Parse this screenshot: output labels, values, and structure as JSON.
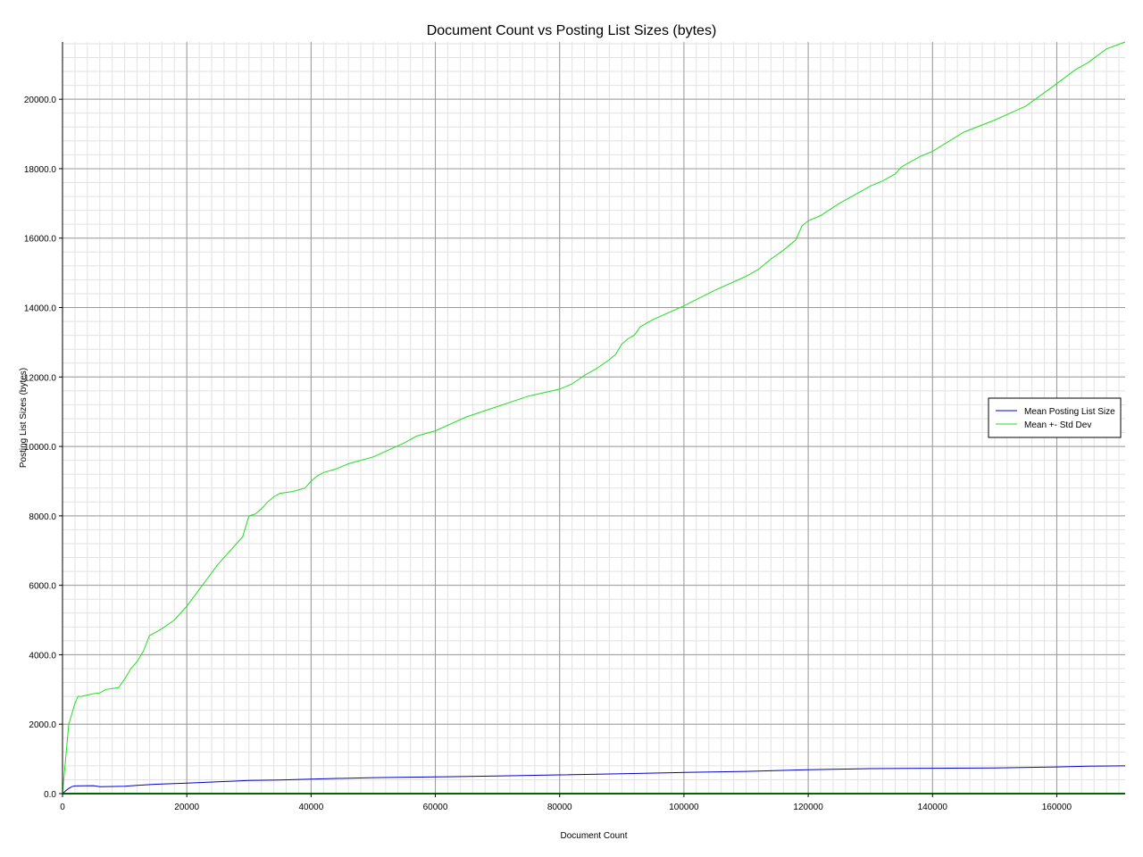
{
  "chart_data": {
    "type": "line",
    "title": "Document Count vs Posting List Sizes (bytes)",
    "xlabel": "Document Count",
    "ylabel": "Posting List Sizes (bytes)",
    "xlim": [
      0,
      171000
    ],
    "ylim": [
      0,
      21650
    ],
    "x_ticks": [
      0,
      20000,
      40000,
      60000,
      80000,
      100000,
      120000,
      140000,
      160000
    ],
    "x_tick_labels": [
      "0",
      "20000",
      "40000",
      "60000",
      "80000",
      "100000",
      "120000",
      "140000",
      "160000"
    ],
    "y_ticks": [
      0,
      2000,
      4000,
      6000,
      8000,
      10000,
      12000,
      14000,
      16000,
      18000,
      20000
    ],
    "y_tick_labels": [
      "0.0",
      "2000.0",
      "4000.0",
      "6000.0",
      "8000.0",
      "10000.0",
      "12000.0",
      "14000.0",
      "16000.0",
      "18000.0",
      "20000.0"
    ],
    "grid": true,
    "legend_position": "right",
    "series": [
      {
        "name": "Mean Posting List Size",
        "color": "#0000cc",
        "x": [
          0,
          500,
          1000,
          1500,
          2000,
          5000,
          6000,
          10000,
          12000,
          15000,
          20000,
          25000,
          30000,
          35000,
          40000,
          50000,
          60000,
          70000,
          80000,
          90000,
          100000,
          110000,
          120000,
          130000,
          140000,
          150000,
          160000,
          165000,
          171000
        ],
        "y": [
          0,
          80,
          150,
          200,
          220,
          230,
          200,
          210,
          240,
          270,
          300,
          340,
          380,
          390,
          420,
          460,
          480,
          510,
          540,
          570,
          610,
          640,
          690,
          720,
          730,
          740,
          770,
          790,
          800
        ]
      },
      {
        "name": "Mean +- Std Dev",
        "color": "#22dd22",
        "x": [
          0,
          500,
          1000,
          2000,
          2500,
          3000,
          5000,
          6000,
          7000,
          9000,
          10000,
          11000,
          12000,
          13000,
          14000,
          15000,
          16000,
          18000,
          20000,
          25000,
          29000,
          30000,
          31000,
          32000,
          33000,
          34000,
          35000,
          37000,
          39000,
          40000,
          41000,
          42000,
          44000,
          46000,
          50000,
          55000,
          57000,
          60000,
          65000,
          70000,
          75000,
          80000,
          82000,
          84000,
          86000,
          88000,
          89000,
          90000,
          91000,
          92000,
          93000,
          95000,
          100000,
          105000,
          110000,
          112000,
          114000,
          116000,
          118000,
          119000,
          120000,
          122000,
          125000,
          130000,
          132000,
          134000,
          135000,
          136000,
          138000,
          140000,
          145000,
          150000,
          155000,
          160000,
          163000,
          165000,
          168000,
          171000
        ],
        "y": [
          0,
          1000,
          2000,
          2600,
          2800,
          2800,
          2880,
          2900,
          3000,
          3050,
          3300,
          3600,
          3800,
          4100,
          4550,
          4650,
          4750,
          5000,
          5400,
          6600,
          7400,
          8000,
          8050,
          8200,
          8400,
          8550,
          8650,
          8700,
          8800,
          9000,
          9150,
          9250,
          9350,
          9500,
          9700,
          10100,
          10300,
          10450,
          10850,
          11150,
          11450,
          11650,
          11800,
          12050,
          12250,
          12500,
          12650,
          12950,
          13100,
          13200,
          13450,
          13650,
          14050,
          14500,
          14900,
          15100,
          15400,
          15650,
          15950,
          16350,
          16500,
          16650,
          17000,
          17500,
          17650,
          17850,
          18050,
          18150,
          18350,
          18500,
          19050,
          19400,
          19800,
          20450,
          20850,
          21050,
          21450,
          21650
        ]
      }
    ]
  }
}
